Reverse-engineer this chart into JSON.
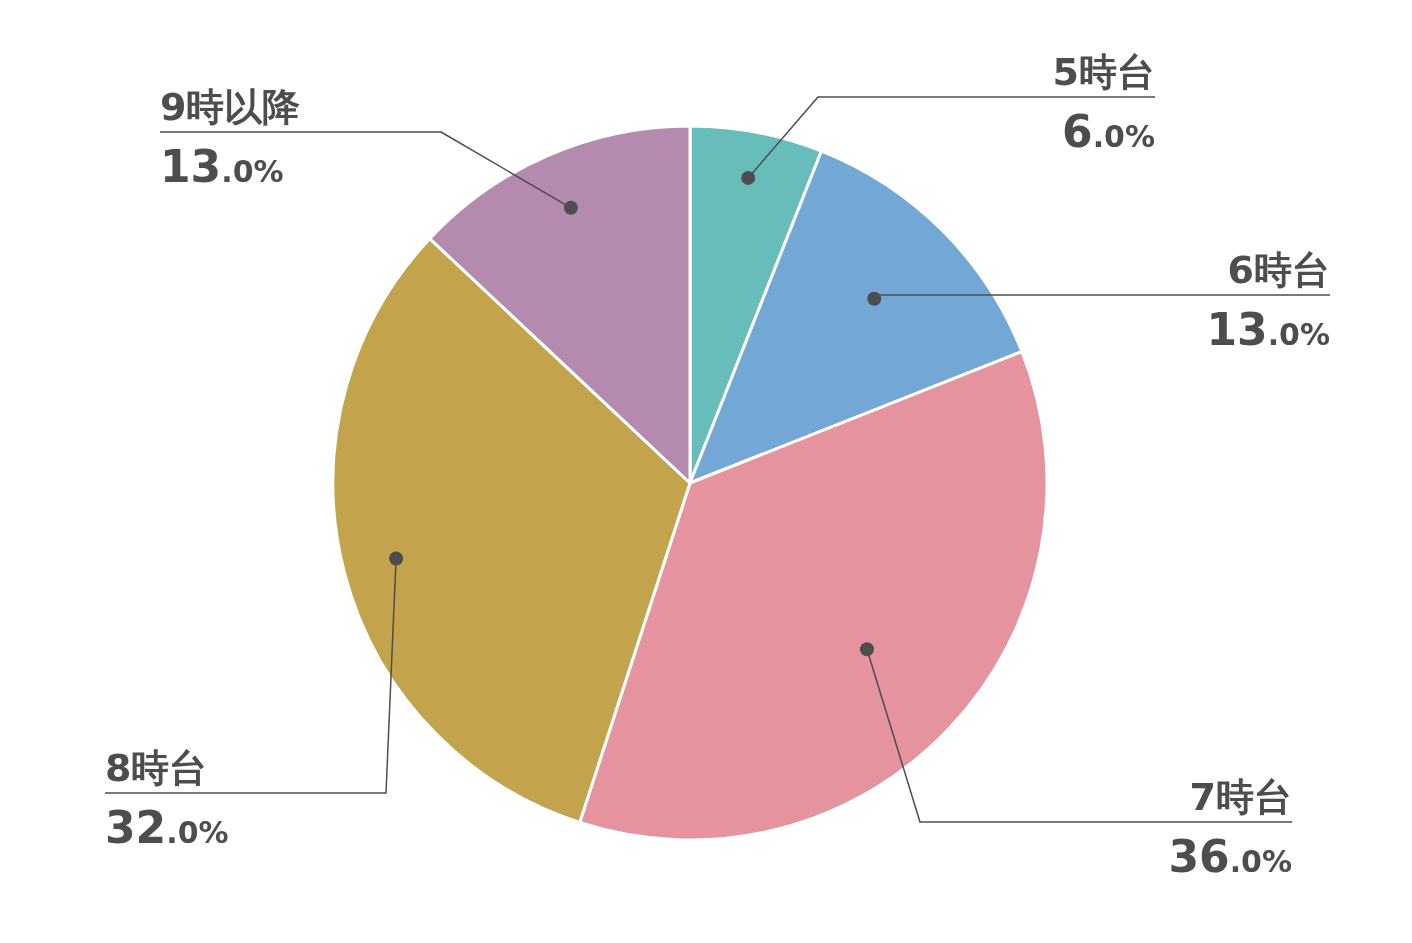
{
  "chart_data": {
    "type": "pie",
    "categories": [
      "5時台",
      "6時台",
      "7時台",
      "8時台",
      "9時以降"
    ],
    "values": [
      6.0,
      13.0,
      36.0,
      32.0,
      13.0
    ],
    "value_labels": [
      "6.0%",
      "13.0%",
      "36.0%",
      "32.0%",
      "13.0%"
    ],
    "colors": [
      "#66bdb9",
      "#73a8d6",
      "#e5949f",
      "#c3a34c",
      "#b48bae"
    ],
    "legend": false
  }
}
